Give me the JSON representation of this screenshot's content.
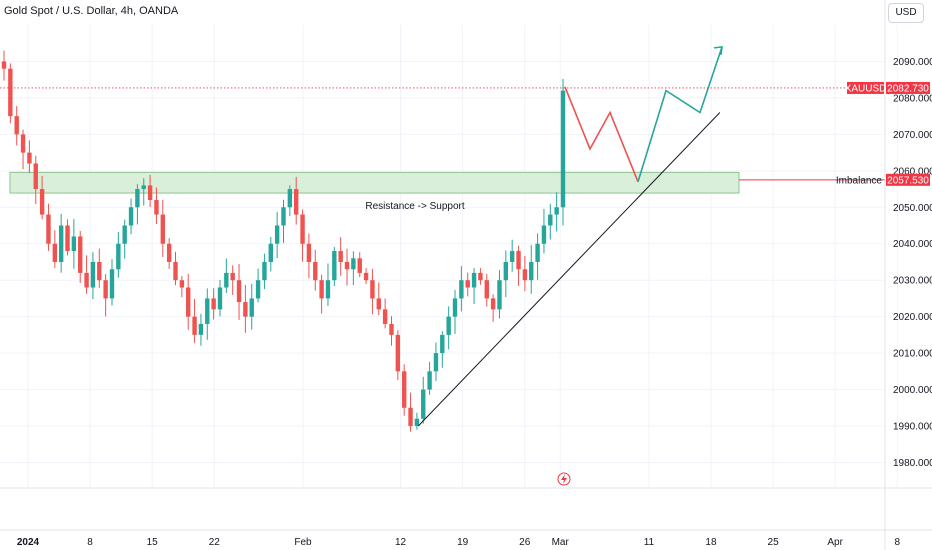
{
  "header": {
    "title": "Gold Spot / U.S. Dollar, 4h, OANDA",
    "currency": "USD"
  },
  "colors": {
    "up": "#26a69a",
    "down": "#ef5350",
    "zone_fill": "#d9efd9",
    "zone_border": "#7cb87c",
    "current_price": "#f23645",
    "grid": "#f0f3fa"
  },
  "price_tags": {
    "current_label": "XAUUSD",
    "current_value": "2082.730",
    "zone_label": "Imbalance",
    "zone_value": "2057.530"
  },
  "annotations": {
    "zone_text": "Resistance -> Support"
  },
  "chart_data": {
    "type": "candlestick",
    "symbol": "XAUUSD",
    "timeframe": "4h",
    "y_ticks": [
      1980,
      1990,
      2000,
      2010,
      2020,
      2030,
      2040,
      2050,
      2060,
      2070,
      2080,
      2090
    ],
    "y_tick_labels": [
      "1980.000",
      "1990.000",
      "2000.000",
      "2010.000",
      "2020.000",
      "2030.000",
      "2040.000",
      "2050.000",
      "2060.000",
      "2070.000",
      "2080.000",
      "2090.000"
    ],
    "ylim": [
      1973,
      2100
    ],
    "x_ticks": [
      {
        "label": "2024",
        "bold": true,
        "date": "2024-01-01"
      },
      {
        "label": "8",
        "date": "2024-01-08"
      },
      {
        "label": "15",
        "date": "2024-01-15"
      },
      {
        "label": "22",
        "date": "2024-01-22"
      },
      {
        "label": "Feb",
        "date": "2024-02-01"
      },
      {
        "label": "12",
        "date": "2024-02-12"
      },
      {
        "label": "19",
        "date": "2024-02-19"
      },
      {
        "label": "26",
        "date": "2024-02-26"
      },
      {
        "label": "Mar",
        "date": "2024-03-01"
      },
      {
        "label": "11",
        "date": "2024-03-11"
      },
      {
        "label": "18",
        "date": "2024-03-18"
      },
      {
        "label": "25",
        "date": "2024-03-25"
      },
      {
        "label": "Apr",
        "date": "2024-04-01"
      },
      {
        "label": "8",
        "date": "2024-04-08"
      }
    ],
    "closes": [
      2088,
      2075,
      2070,
      2065,
      2062,
      2055,
      2048,
      2040,
      2035,
      2045,
      2038,
      2042,
      2032,
      2028,
      2035,
      2030,
      2025,
      2033,
      2040,
      2045,
      2050,
      2055,
      2056,
      2052,
      2048,
      2040,
      2035,
      2030,
      2028,
      2020,
      2015,
      2018,
      2025,
      2022,
      2028,
      2032,
      2030,
      2024,
      2020,
      2025,
      2030,
      2035,
      2040,
      2045,
      2050,
      2055,
      2048,
      2040,
      2035,
      2030,
      2025,
      2030,
      2038,
      2035,
      2033,
      2036,
      2032,
      2030,
      2025,
      2022,
      2018,
      2015,
      2005,
      1995,
      1990,
      1992,
      2000,
      2005,
      2010,
      2015,
      2020,
      2025,
      2030,
      2028,
      2032,
      2030,
      2025,
      2022,
      2030,
      2035,
      2038,
      2033,
      2030,
      2035,
      2040,
      2045,
      2048,
      2050,
      2082
    ],
    "current_price": 2082.73,
    "zone": {
      "low": 2055,
      "high": 2058.5,
      "label": "Imbalance",
      "value": 2057.53
    },
    "trendline": {
      "from": {
        "date": "2024-02-14",
        "price": 1990
      },
      "to": {
        "date": "2024-03-19",
        "price": 2076
      }
    },
    "projection": {
      "down_path_prices": [
        2083,
        2066,
        2076,
        2057
      ],
      "up_path_prices": [
        2057,
        2082,
        2076,
        2094
      ]
    }
  }
}
